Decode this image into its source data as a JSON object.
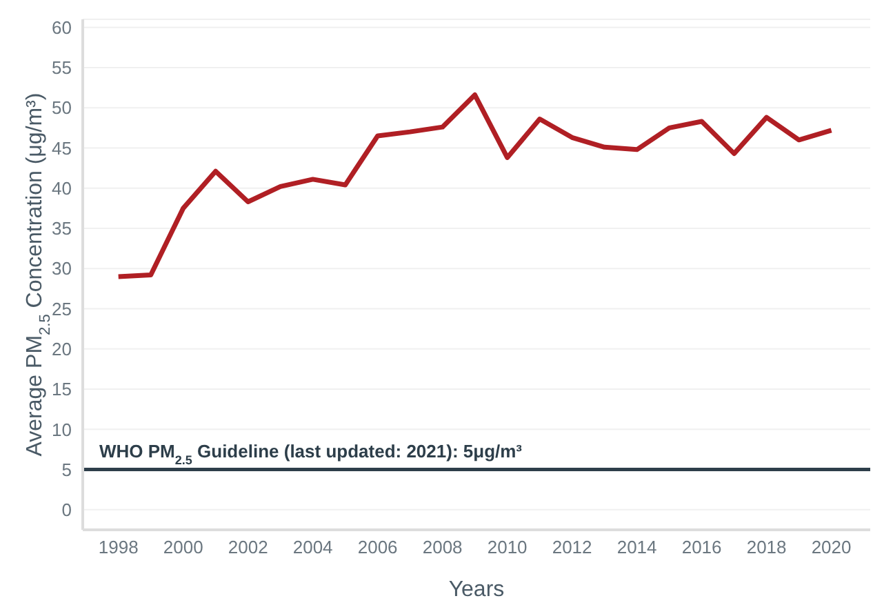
{
  "chart_data": {
    "type": "line",
    "xlabel": "Years",
    "ylabel": "Average PM$_{2.5}$ Concentration (μg/m³)",
    "x": [
      1998,
      1999,
      2000,
      2001,
      2002,
      2003,
      2004,
      2005,
      2006,
      2007,
      2008,
      2009,
      2010,
      2011,
      2012,
      2013,
      2014,
      2015,
      2016,
      2017,
      2018,
      2019,
      2020
    ],
    "series": [
      {
        "color": "#b01f24",
        "values": [
          29.0,
          29.2,
          37.5,
          42.1,
          38.3,
          40.2,
          41.1,
          40.4,
          46.5,
          47.0,
          47.6,
          51.6,
          43.8,
          48.6,
          46.3,
          45.1,
          44.8,
          47.5,
          48.3,
          44.3,
          48.8,
          46.0,
          47.2
        ]
      }
    ],
    "xlim": [
      1996.9,
      2021.2
    ],
    "xticks": [
      1998,
      2000,
      2002,
      2004,
      2006,
      2008,
      2010,
      2012,
      2014,
      2016,
      2018,
      2020
    ],
    "ylim": [
      -2.5,
      61
    ],
    "yticks": [
      0,
      5,
      10,
      15,
      20,
      25,
      30,
      35,
      40,
      45,
      50,
      55,
      60
    ],
    "grid": "y",
    "legend": false,
    "marker": "none",
    "line_style": "solid",
    "ref_lines": [
      {
        "axis": "y",
        "value": 5,
        "label": "WHO PM$_{2.5}$ Guideline (last updated: 2021): 5μg/m³",
        "color": "#2d3e4a"
      }
    ]
  }
}
